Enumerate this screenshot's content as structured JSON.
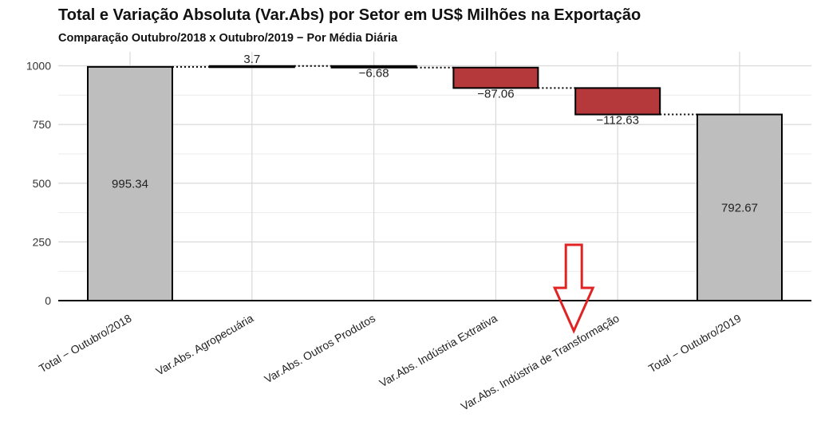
{
  "chart_data": {
    "type": "bar",
    "subtype": "waterfall",
    "title": "Total e Variação Absoluta (Var.Abs) por Setor em US$ Milhões na Exportação",
    "subtitle": "Comparação Outubro/2018 x Outubro/2019 − Por Média Diária",
    "xlabel": "",
    "ylabel": "",
    "ylim": [
      0,
      1060
    ],
    "yticks": [
      0,
      250,
      500,
      750,
      1000
    ],
    "grid": true,
    "categories": [
      "Total − Outubro/2018",
      "Var.Abs. Agropecuária",
      "Var.Abs. Outros Produtos",
      "Var.Abs. Indústria Extrativa",
      "Var.Abs. Indústria de Transformação",
      "Total − Outubro/2019"
    ],
    "values": [
      995.34,
      3.7,
      -6.68,
      -87.06,
      -112.63,
      792.67
    ],
    "value_labels": [
      "995.34",
      "3.7",
      "−6.68",
      "−87.06",
      "−112.63",
      "792.67"
    ],
    "kinds": [
      "total",
      "delta",
      "delta",
      "delta",
      "delta",
      "total"
    ],
    "colors": {
      "total": "#bebebe",
      "increase": "#bebebe",
      "decrease": "#b5383b",
      "arrow": "#e02424"
    },
    "annotation": {
      "type": "down-arrow",
      "category_index": 4
    }
  }
}
